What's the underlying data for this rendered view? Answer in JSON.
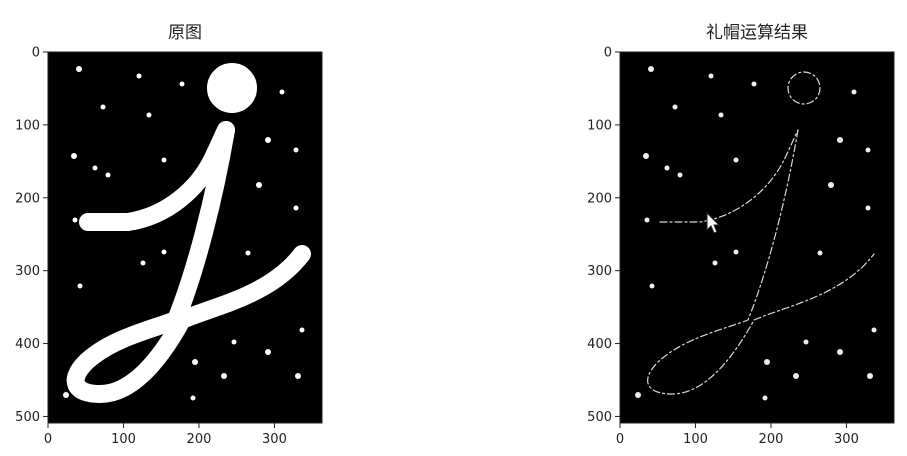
{
  "chart_data": [
    {
      "type": "image",
      "title": "原图",
      "xlim": [
        0,
        363
      ],
      "ylim": [
        509,
        0
      ],
      "xticks": [
        0,
        100,
        200,
        300
      ],
      "yticks": [
        0,
        100,
        200,
        300,
        400,
        500
      ],
      "background": "#000000",
      "foreground": "#ffffff",
      "content": "filled"
    },
    {
      "type": "image",
      "title": "礼帽运算结果",
      "xlim": [
        0,
        363
      ],
      "ylim": [
        509,
        0
      ],
      "xticks": [
        0,
        100,
        200,
        300
      ],
      "yticks": [
        0,
        100,
        200,
        300,
        400,
        500
      ],
      "background": "#000000",
      "foreground": "#ffffff",
      "content": "edges"
    }
  ]
}
